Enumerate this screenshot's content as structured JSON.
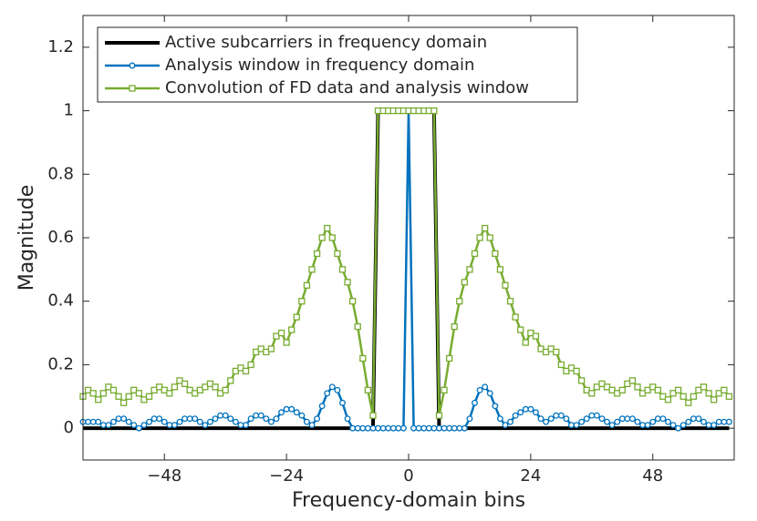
{
  "chart_data": {
    "type": "line",
    "xlabel": "Frequency-domain bins",
    "ylabel": "Magnitude",
    "xlim": [
      -64,
      64
    ],
    "ylim": [
      -0.1,
      1.3
    ],
    "xticks": [
      {
        "value": -48,
        "label": "−48"
      },
      {
        "value": -24,
        "label": "−24"
      },
      0,
      24,
      48
    ],
    "yticks": [
      0,
      0.2,
      0.4,
      0.6,
      0.8,
      1,
      1.2
    ],
    "legend": "upper-left",
    "x": [
      -64,
      -63,
      -62,
      -61,
      -60,
      -59,
      -58,
      -57,
      -56,
      -55,
      -54,
      -53,
      -52,
      -51,
      -50,
      -49,
      -48,
      -47,
      -46,
      -45,
      -44,
      -43,
      -42,
      -41,
      -40,
      -39,
      -38,
      -37,
      -36,
      -35,
      -34,
      -33,
      -32,
      -31,
      -30,
      -29,
      -28,
      -27,
      -26,
      -25,
      -24,
      -23,
      -22,
      -21,
      -20,
      -19,
      -18,
      -17,
      -16,
      -15,
      -14,
      -13,
      -12,
      -11,
      -10,
      -9,
      -8,
      -7,
      -6,
      -5,
      -4,
      -3,
      -2,
      -1,
      0,
      1,
      2,
      3,
      4,
      5,
      6,
      7,
      8,
      9,
      10,
      11,
      12,
      13,
      14,
      15,
      16,
      17,
      18,
      19,
      20,
      21,
      22,
      23,
      24,
      25,
      26,
      27,
      28,
      29,
      30,
      31,
      32,
      33,
      34,
      35,
      36,
      37,
      38,
      39,
      40,
      41,
      42,
      43,
      44,
      45,
      46,
      47,
      48,
      49,
      50,
      51,
      52,
      53,
      54,
      55,
      56,
      57,
      58,
      59,
      60,
      61,
      62,
      63
    ],
    "series": [
      {
        "name": "Active subcarriers in frequency domain",
        "color": "#000000",
        "marker": "none",
        "width": 4,
        "values": [
          0,
          0,
          0,
          0,
          0,
          0,
          0,
          0,
          0,
          0,
          0,
          0,
          0,
          0,
          0,
          0,
          0,
          0,
          0,
          0,
          0,
          0,
          0,
          0,
          0,
          0,
          0,
          0,
          0,
          0,
          0,
          0,
          0,
          0,
          0,
          0,
          0,
          0,
          0,
          0,
          0,
          0,
          0,
          0,
          0,
          0,
          0,
          0,
          0,
          0,
          0,
          0,
          0,
          0,
          0,
          0,
          0,
          0,
          1,
          1,
          1,
          1,
          1,
          1,
          1,
          1,
          1,
          1,
          1,
          1,
          0,
          0,
          0,
          0,
          0,
          0,
          0,
          0,
          0,
          0,
          0,
          0,
          0,
          0,
          0,
          0,
          0,
          0,
          0,
          0,
          0,
          0,
          0,
          0,
          0,
          0,
          0,
          0,
          0,
          0,
          0,
          0,
          0,
          0,
          0,
          0,
          0,
          0,
          0,
          0,
          0,
          0,
          0,
          0,
          0,
          0,
          0,
          0,
          0,
          0,
          0,
          0,
          0,
          0,
          0,
          0,
          0,
          0
        ]
      },
      {
        "name": "Analysis window in frequency domain",
        "color": "#0072bd",
        "marker": "circle",
        "width": 2.5,
        "values": [
          0.02,
          0.02,
          0.02,
          0.02,
          0.01,
          0.01,
          0.02,
          0.03,
          0.03,
          0.02,
          0.01,
          0,
          0.01,
          0.02,
          0.03,
          0.03,
          0.02,
          0.01,
          0.01,
          0.02,
          0.03,
          0.03,
          0.03,
          0.02,
          0.01,
          0.02,
          0.03,
          0.04,
          0.04,
          0.03,
          0.02,
          0.01,
          0.01,
          0.03,
          0.04,
          0.04,
          0.03,
          0.02,
          0.03,
          0.05,
          0.06,
          0.06,
          0.05,
          0.04,
          0.02,
          0.01,
          0.03,
          0.07,
          0.11,
          0.13,
          0.12,
          0.08,
          0.03,
          0,
          0,
          0,
          0,
          0,
          0,
          0,
          0,
          0,
          0,
          0,
          1,
          0,
          0,
          0,
          0,
          0,
          0,
          0,
          0,
          0,
          0,
          0,
          0.03,
          0.08,
          0.12,
          0.13,
          0.11,
          0.07,
          0.03,
          0.01,
          0.02,
          0.04,
          0.05,
          0.06,
          0.06,
          0.05,
          0.03,
          0.02,
          0.03,
          0.04,
          0.04,
          0.03,
          0.01,
          0.01,
          0.02,
          0.03,
          0.04,
          0.04,
          0.03,
          0.02,
          0.01,
          0.02,
          0.03,
          0.03,
          0.03,
          0.02,
          0.01,
          0.01,
          0.02,
          0.03,
          0.03,
          0.02,
          0.01,
          0,
          0.01,
          0.02,
          0.03,
          0.03,
          0.02,
          0.01,
          0.01,
          0.02,
          0.02,
          0.02
        ]
      },
      {
        "name": "Convolution of FD data and analysis window",
        "color": "#77ac30",
        "marker": "square",
        "width": 2.5,
        "values": [
          0.1,
          0.12,
          0.11,
          0.09,
          0.11,
          0.13,
          0.12,
          0.1,
          0.08,
          0.1,
          0.12,
          0.11,
          0.09,
          0.1,
          0.12,
          0.13,
          0.12,
          0.11,
          0.13,
          0.15,
          0.14,
          0.12,
          0.11,
          0.12,
          0.13,
          0.14,
          0.13,
          0.11,
          0.12,
          0.15,
          0.18,
          0.19,
          0.18,
          0.2,
          0.24,
          0.25,
          0.24,
          0.25,
          0.29,
          0.3,
          0.27,
          0.31,
          0.35,
          0.4,
          0.45,
          0.5,
          0.55,
          0.6,
          0.63,
          0.6,
          0.55,
          0.5,
          0.46,
          0.4,
          0.32,
          0.22,
          0.12,
          0.04,
          1,
          1,
          1,
          1,
          1,
          1,
          1,
          1,
          1,
          1,
          1,
          1,
          0.04,
          0.12,
          0.22,
          0.32,
          0.4,
          0.46,
          0.5,
          0.55,
          0.6,
          0.63,
          0.6,
          0.55,
          0.5,
          0.45,
          0.4,
          0.35,
          0.31,
          0.27,
          0.3,
          0.29,
          0.25,
          0.24,
          0.25,
          0.24,
          0.2,
          0.18,
          0.19,
          0.18,
          0.15,
          0.12,
          0.11,
          0.13,
          0.14,
          0.13,
          0.12,
          0.11,
          0.12,
          0.14,
          0.15,
          0.13,
          0.11,
          0.12,
          0.13,
          0.12,
          0.1,
          0.09,
          0.11,
          0.12,
          0.1,
          0.08,
          0.1,
          0.12,
          0.13,
          0.11,
          0.09,
          0.11,
          0.12,
          0.1
        ]
      }
    ]
  }
}
